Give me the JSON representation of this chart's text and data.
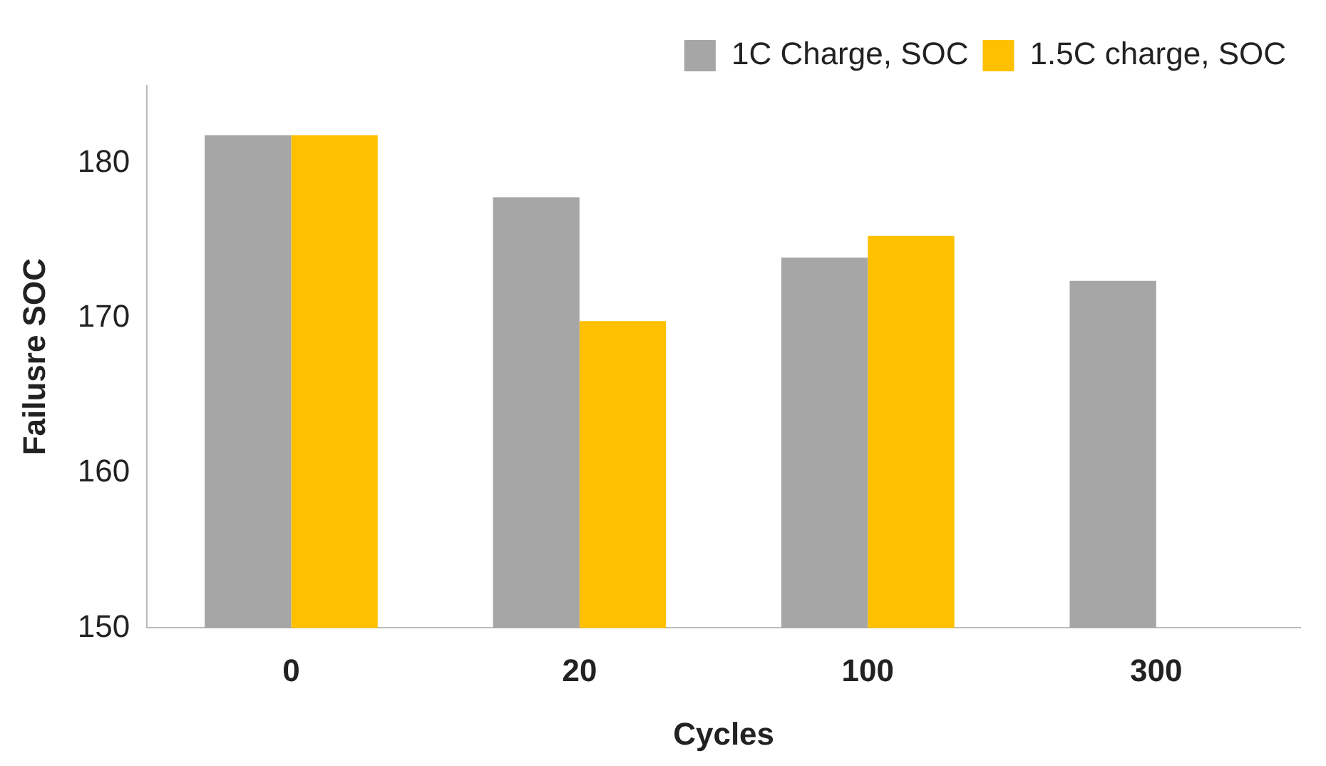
{
  "chart_data": {
    "type": "bar",
    "xlabel": "Cycles",
    "ylabel": "Failusre SOC",
    "categories": [
      "0",
      "20",
      "100",
      "300"
    ],
    "series": [
      {
        "name": "1C Charge, SOC",
        "color": "#a6a6a6",
        "values": [
          181.8,
          177.8,
          173.9,
          172.4
        ]
      },
      {
        "name": "1.5C charge, SOC",
        "color": "#ffc000",
        "values": [
          181.8,
          169.8,
          175.3,
          null
        ]
      }
    ],
    "ylim": [
      150,
      185
    ],
    "yticks": [
      150,
      160,
      170,
      180
    ],
    "grid": false,
    "legend": "top right"
  }
}
